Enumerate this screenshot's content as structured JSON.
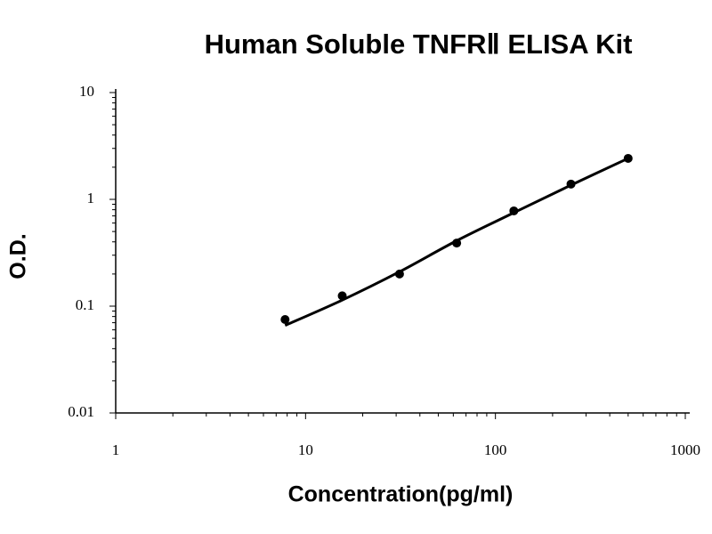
{
  "chart_data": {
    "type": "scatter",
    "title": "Human Soluble TNFRⅡ ELISA Kit",
    "x_label": "Concentration(pg/ml)",
    "y_label": "O.D.",
    "x": [
      7.8,
      15.6,
      31.25,
      62.5,
      125,
      250,
      500
    ],
    "values": [
      0.075,
      0.125,
      0.2,
      0.39,
      0.78,
      1.39,
      2.42
    ],
    "fit": {
      "x": [
        7.8,
        15.6,
        31.25,
        62.5,
        125,
        250,
        500
      ],
      "values": [
        0.066,
        0.114,
        0.21,
        0.41,
        0.75,
        1.36,
        2.42
      ]
    },
    "color": "#000000",
    "xlog": true,
    "ylog": true,
    "xlim": [
      1,
      1000
    ],
    "ylim": [
      0.01,
      10
    ],
    "xticks": [
      1,
      10,
      100,
      1000
    ],
    "yticks": [
      0.01,
      0.1,
      1,
      10
    ],
    "xminorticks": [
      2,
      3,
      4,
      5,
      6,
      7,
      8,
      9,
      20,
      30,
      40,
      50,
      60,
      70,
      80,
      90,
      200,
      300,
      400,
      500,
      600,
      700,
      800,
      900
    ],
    "yminorticks": [
      0.02,
      0.03,
      0.04,
      0.05,
      0.06,
      0.07,
      0.08,
      0.09,
      0.2,
      0.3,
      0.4,
      0.5,
      0.6,
      0.7,
      0.8,
      0.9,
      2,
      3,
      4,
      5,
      6,
      7,
      8,
      9
    ],
    "grid": false
  }
}
